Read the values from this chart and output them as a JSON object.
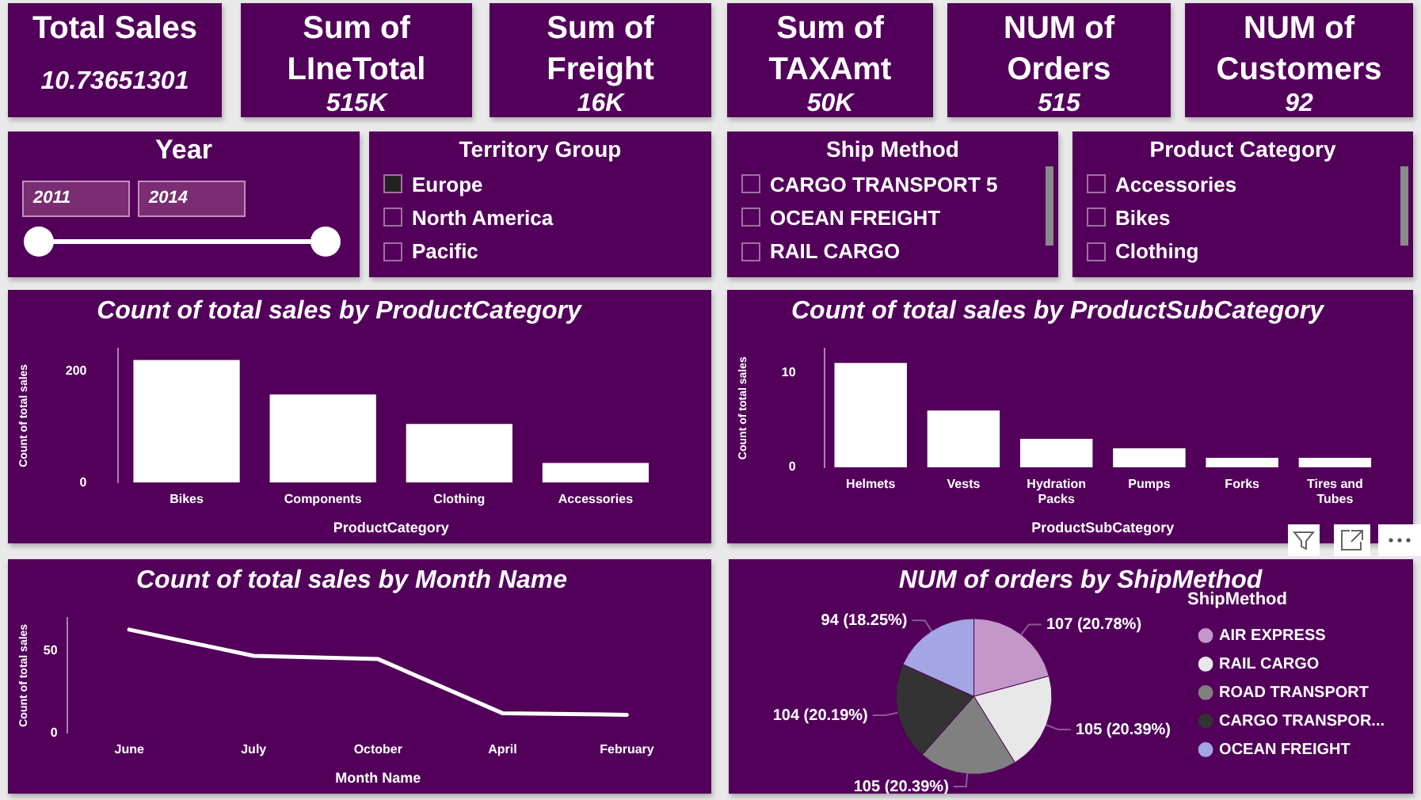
{
  "chart_data": [
    {
      "type": "other",
      "title": "Total Sales",
      "annotations": [
        "10.73651301"
      ]
    },
    {
      "type": "other",
      "title": "Sum of LIneTotal",
      "annotations": [
        "515K"
      ]
    },
    {
      "type": "other",
      "title": "Sum of Freight",
      "annotations": [
        "16K"
      ]
    },
    {
      "type": "other",
      "title": "Sum of TAXAmt",
      "annotations": [
        "50K"
      ]
    },
    {
      "type": "other",
      "title": "NUM of Orders",
      "annotations": [
        "515"
      ]
    },
    {
      "type": "other",
      "title": "NUM of Customers",
      "annotations": [
        "92"
      ]
    },
    {
      "type": "other",
      "title": "Year",
      "annotations": [
        "2011",
        "2014"
      ]
    },
    {
      "type": "other",
      "title": "Territory Group",
      "annotations": [
        "Europe",
        "North America",
        "Pacific"
      ]
    },
    {
      "type": "other",
      "title": "Ship Method",
      "annotations": [
        "CARGO TRANSPORT 5",
        "OCEAN FREIGHT",
        "RAIL CARGO"
      ]
    },
    {
      "type": "other",
      "title": "Product Category",
      "annotations": [
        "Accessories",
        "Bikes",
        "Clothing"
      ]
    },
    {
      "type": "bar",
      "title": "Count of total sales by ProductCategory",
      "xlabel": "ProductCategory",
      "ylabel": "Count of total sales",
      "categories": [
        "Bikes",
        "Components",
        "Clothing",
        "Accessories"
      ],
      "values": [
        220,
        158,
        105,
        35
      ],
      "color": "#ffffff",
      "ylim": [
        0,
        240
      ],
      "yticks": [
        0,
        200
      ]
    },
    {
      "type": "bar",
      "title": "Count of total sales by ProductSubCategory",
      "xlabel": "ProductSubCategory",
      "ylabel": "Count of total sales",
      "categories": [
        "Helmets",
        "Vests",
        "Hydration Packs",
        "Pumps",
        "Forks",
        "Tires and Tubes"
      ],
      "values": [
        11,
        6,
        3,
        2,
        1,
        1
      ],
      "color": "#ffffff",
      "ylim": [
        0,
        12.5
      ],
      "yticks": [
        0,
        10
      ]
    },
    {
      "type": "line",
      "title": "Count of total sales by Month Name",
      "xlabel": "Month Name",
      "ylabel": "Count of total sales",
      "categories": [
        "June",
        "July",
        "October",
        "April",
        "February"
      ],
      "values": [
        63,
        47,
        45,
        12,
        11
      ],
      "color": "#ffffff",
      "ylim": [
        0,
        70
      ],
      "yticks": [
        0,
        50
      ]
    },
    {
      "type": "pie",
      "title": "NUM of orders by ShipMethod",
      "legend_title": "ShipMethod",
      "legend": "right",
      "categories": [
        "AIR EXPRESS",
        "RAIL CARGO",
        "ROAD TRANSPORT",
        "CARGO TRANSPOR...",
        "OCEAN FREIGHT"
      ],
      "values": [
        107,
        105,
        105,
        104,
        94
      ],
      "value_labels": [
        "107 (20.78%)",
        "105 (20.39%)",
        "105 (20.39%)",
        "104 (20.19%)",
        "94 (18.25%)"
      ],
      "colors": [
        "#c497c9",
        "#e8e8e8",
        "#808080",
        "#333333",
        "#a3a6e3"
      ]
    }
  ]
}
